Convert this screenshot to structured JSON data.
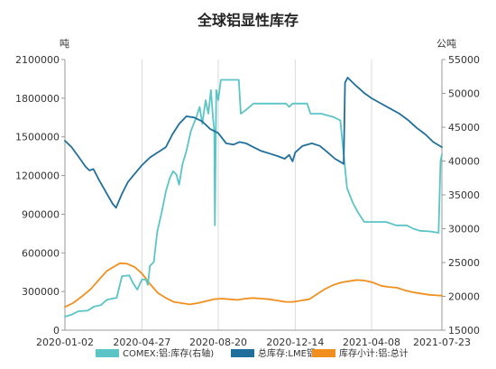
{
  "chart_data": {
    "type": "line",
    "title": "全球铝显性库存",
    "left_unit": "吨",
    "right_unit": "公吨",
    "left_axis": {
      "min": 0,
      "max": 2100000,
      "ticks": [
        "0",
        "300000",
        "600000",
        "900000",
        "1200000",
        "1500000",
        "1800000",
        "2100000"
      ]
    },
    "right_axis": {
      "min": 15000,
      "max": 55000,
      "ticks": [
        "15000",
        "20000",
        "25000",
        "30000",
        "35000",
        "40000",
        "45000",
        "50000",
        "55000"
      ]
    },
    "x_ticks": [
      "2020-01-02",
      "2020-04-27",
      "2020-08-20",
      "2020-12-14",
      "2021-04-08",
      "2021-07-23"
    ],
    "x_range": [
      "2020-01-02",
      "2021-07-23"
    ],
    "grid": "vertical",
    "legend_position": "bottom",
    "series": [
      {
        "name": "COMEX:铝:库存(右轴)",
        "axis": "right",
        "color": "#5bc4c6",
        "points": [
          [
            "2020-01-02",
            17000
          ],
          [
            "2020-01-12",
            17300
          ],
          [
            "2020-01-22",
            17800
          ],
          [
            "2020-02-05",
            17900
          ],
          [
            "2020-02-15",
            18500
          ],
          [
            "2020-02-25",
            18700
          ],
          [
            "2020-03-05",
            19500
          ],
          [
            "2020-03-20",
            19800
          ],
          [
            "2020-03-28",
            23000
          ],
          [
            "2020-04-08",
            23100
          ],
          [
            "2020-04-14",
            21900
          ],
          [
            "2020-04-20",
            21000
          ],
          [
            "2020-04-27",
            22500
          ],
          [
            "2020-05-03",
            22500
          ],
          [
            "2020-05-06",
            21700
          ],
          [
            "2020-05-09",
            24500
          ],
          [
            "2020-05-15",
            25100
          ],
          [
            "2020-05-20",
            29500
          ],
          [
            "2020-05-27",
            32500
          ],
          [
            "2020-06-02",
            35500
          ],
          [
            "2020-06-08",
            37500
          ],
          [
            "2020-06-13",
            38500
          ],
          [
            "2020-06-18",
            38000
          ],
          [
            "2020-06-22",
            36500
          ],
          [
            "2020-06-27",
            39500
          ],
          [
            "2020-07-03",
            41500
          ],
          [
            "2020-07-10",
            44500
          ],
          [
            "2020-07-18",
            46500
          ],
          [
            "2020-07-23",
            48000
          ],
          [
            "2020-07-27",
            45500
          ],
          [
            "2020-08-01",
            49000
          ],
          [
            "2020-08-05",
            47000
          ],
          [
            "2020-08-09",
            50500
          ],
          [
            "2020-08-12",
            46500
          ],
          [
            "2020-08-14",
            44500
          ],
          [
            "2020-08-15",
            30500
          ],
          [
            "2020-08-17",
            50500
          ],
          [
            "2020-08-20",
            49000
          ],
          [
            "2020-08-24",
            52000
          ],
          [
            "2020-09-20",
            52000
          ],
          [
            "2020-09-23",
            47000
          ],
          [
            "2020-09-30",
            47500
          ],
          [
            "2020-10-12",
            48500
          ],
          [
            "2020-11-30",
            48500
          ],
          [
            "2020-12-05",
            48000
          ],
          [
            "2020-12-10",
            48500
          ],
          [
            "2021-01-01",
            48500
          ],
          [
            "2021-01-06",
            47000
          ],
          [
            "2021-01-22",
            47000
          ],
          [
            "2021-02-10",
            46500
          ],
          [
            "2021-02-20",
            46000
          ],
          [
            "2021-02-25",
            41000
          ],
          [
            "2021-03-02",
            36000
          ],
          [
            "2021-03-10",
            34000
          ],
          [
            "2021-03-18",
            32500
          ],
          [
            "2021-03-28",
            31000
          ],
          [
            "2021-04-30",
            31000
          ],
          [
            "2021-05-15",
            30500
          ],
          [
            "2021-05-31",
            30500
          ],
          [
            "2021-06-10",
            30000
          ],
          [
            "2021-06-20",
            29700
          ],
          [
            "2021-07-05",
            29600
          ],
          [
            "2021-07-18",
            29400
          ],
          [
            "2021-07-21",
            40000
          ],
          [
            "2021-07-23",
            41000
          ]
        ]
      },
      {
        "name": "总库存:LME铝",
        "axis": "left",
        "color": "#1f6f9c",
        "points": [
          [
            "2020-01-02",
            1470000
          ],
          [
            "2020-01-12",
            1420000
          ],
          [
            "2020-01-22",
            1350000
          ],
          [
            "2020-02-02",
            1270000
          ],
          [
            "2020-02-08",
            1240000
          ],
          [
            "2020-02-14",
            1250000
          ],
          [
            "2020-02-22",
            1170000
          ],
          [
            "2020-03-05",
            1060000
          ],
          [
            "2020-03-14",
            980000
          ],
          [
            "2020-03-19",
            950000
          ],
          [
            "2020-03-28",
            1060000
          ],
          [
            "2020-04-06",
            1150000
          ],
          [
            "2020-04-14",
            1200000
          ],
          [
            "2020-04-27",
            1280000
          ],
          [
            "2020-05-09",
            1340000
          ],
          [
            "2020-05-21",
            1380000
          ],
          [
            "2020-06-02",
            1420000
          ],
          [
            "2020-06-12",
            1520000
          ],
          [
            "2020-06-22",
            1600000
          ],
          [
            "2020-07-03",
            1660000
          ],
          [
            "2020-07-15",
            1650000
          ],
          [
            "2020-07-27",
            1620000
          ],
          [
            "2020-08-08",
            1560000
          ],
          [
            "2020-08-20",
            1530000
          ],
          [
            "2020-09-01",
            1450000
          ],
          [
            "2020-09-12",
            1440000
          ],
          [
            "2020-09-21",
            1460000
          ],
          [
            "2020-10-01",
            1450000
          ],
          [
            "2020-10-12",
            1420000
          ],
          [
            "2020-10-24",
            1390000
          ],
          [
            "2020-11-06",
            1370000
          ],
          [
            "2020-11-18",
            1350000
          ],
          [
            "2020-11-28",
            1330000
          ],
          [
            "2020-12-05",
            1360000
          ],
          [
            "2020-12-10",
            1310000
          ],
          [
            "2020-12-14",
            1380000
          ],
          [
            "2020-12-25",
            1430000
          ],
          [
            "2021-01-08",
            1450000
          ],
          [
            "2021-01-20",
            1430000
          ],
          [
            "2021-02-01",
            1380000
          ],
          [
            "2021-02-12",
            1330000
          ],
          [
            "2021-02-22",
            1300000
          ],
          [
            "2021-02-25",
            1290000
          ],
          [
            "2021-02-27",
            1920000
          ],
          [
            "2021-03-03",
            1960000
          ],
          [
            "2021-03-15",
            1900000
          ],
          [
            "2021-03-28",
            1840000
          ],
          [
            "2021-04-08",
            1800000
          ],
          [
            "2021-04-22",
            1760000
          ],
          [
            "2021-05-06",
            1720000
          ],
          [
            "2021-05-20",
            1680000
          ],
          [
            "2021-06-02",
            1630000
          ],
          [
            "2021-06-15",
            1570000
          ],
          [
            "2021-06-28",
            1520000
          ],
          [
            "2021-07-10",
            1460000
          ],
          [
            "2021-07-23",
            1420000
          ]
        ]
      },
      {
        "name": "库存小计:铝:总计",
        "axis": "left",
        "color": "#f18f1e",
        "points": [
          [
            "2020-01-02",
            180000
          ],
          [
            "2020-01-14",
            210000
          ],
          [
            "2020-01-27",
            260000
          ],
          [
            "2020-02-10",
            320000
          ],
          [
            "2020-02-22",
            390000
          ],
          [
            "2020-03-05",
            460000
          ],
          [
            "2020-03-15",
            490000
          ],
          [
            "2020-03-25",
            520000
          ],
          [
            "2020-04-05",
            515000
          ],
          [
            "2020-04-16",
            490000
          ],
          [
            "2020-04-27",
            440000
          ],
          [
            "2020-05-09",
            360000
          ],
          [
            "2020-05-21",
            290000
          ],
          [
            "2020-06-02",
            250000
          ],
          [
            "2020-06-14",
            220000
          ],
          [
            "2020-06-26",
            210000
          ],
          [
            "2020-07-08",
            200000
          ],
          [
            "2020-07-20",
            210000
          ],
          [
            "2020-08-01",
            225000
          ],
          [
            "2020-08-13",
            240000
          ],
          [
            "2020-08-25",
            245000
          ],
          [
            "2020-09-06",
            240000
          ],
          [
            "2020-09-18",
            235000
          ],
          [
            "2020-09-30",
            245000
          ],
          [
            "2020-10-12",
            250000
          ],
          [
            "2020-10-24",
            245000
          ],
          [
            "2020-11-05",
            240000
          ],
          [
            "2020-11-17",
            230000
          ],
          [
            "2020-11-29",
            220000
          ],
          [
            "2020-12-11",
            220000
          ],
          [
            "2020-12-23",
            230000
          ],
          [
            "2021-01-04",
            240000
          ],
          [
            "2021-01-16",
            280000
          ],
          [
            "2021-01-28",
            320000
          ],
          [
            "2021-02-09",
            350000
          ],
          [
            "2021-02-21",
            370000
          ],
          [
            "2021-03-05",
            380000
          ],
          [
            "2021-03-17",
            390000
          ],
          [
            "2021-03-29",
            385000
          ],
          [
            "2021-04-10",
            370000
          ],
          [
            "2021-04-22",
            345000
          ],
          [
            "2021-05-04",
            335000
          ],
          [
            "2021-05-16",
            330000
          ],
          [
            "2021-05-28",
            310000
          ],
          [
            "2021-06-09",
            295000
          ],
          [
            "2021-06-21",
            285000
          ],
          [
            "2021-07-03",
            275000
          ],
          [
            "2021-07-15",
            270000
          ],
          [
            "2021-07-23",
            268000
          ]
        ]
      }
    ]
  }
}
